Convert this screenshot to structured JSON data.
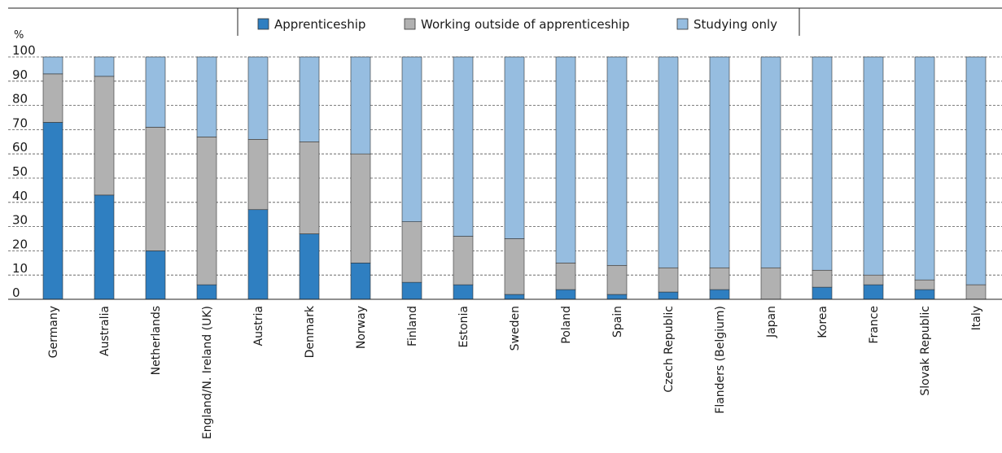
{
  "chart_data": {
    "type": "bar",
    "stacked": true,
    "ylabel": "%",
    "ylim": [
      0,
      100
    ],
    "yticks": [
      0,
      10,
      20,
      30,
      40,
      50,
      60,
      70,
      80,
      90,
      100
    ],
    "grid": true,
    "legend_placement": "top",
    "categories": [
      "Germany",
      "Australia",
      "Netherlands",
      "England/N. Ireland (UK)",
      "Austria",
      "Denmark",
      "Norway",
      "Finland",
      "Estonia",
      "Sweden",
      "Poland",
      "Spain",
      "Czech Republic",
      "Flanders (Belgium)",
      "Japan",
      "Korea",
      "France",
      "Slovak Republic",
      "Italy"
    ],
    "series": [
      {
        "name": "Apprenticeship",
        "color": "#2f7fc1",
        "values": [
          73,
          43,
          20,
          6,
          37,
          27,
          15,
          7,
          6,
          2,
          4,
          2,
          3,
          4,
          0,
          5,
          6,
          4,
          0
        ]
      },
      {
        "name": "Working outside of apprenticeship",
        "color": "#b1b1b1",
        "values": [
          20,
          49,
          51,
          61,
          29,
          38,
          45,
          25,
          20,
          23,
          11,
          12,
          10,
          9,
          13,
          7,
          4,
          4,
          6
        ]
      },
      {
        "name": "Studying only",
        "color": "#96bde0",
        "values": [
          7,
          8,
          29,
          33,
          34,
          35,
          40,
          68,
          74,
          75,
          85,
          86,
          87,
          87,
          87,
          88,
          90,
          92,
          94
        ]
      }
    ]
  }
}
